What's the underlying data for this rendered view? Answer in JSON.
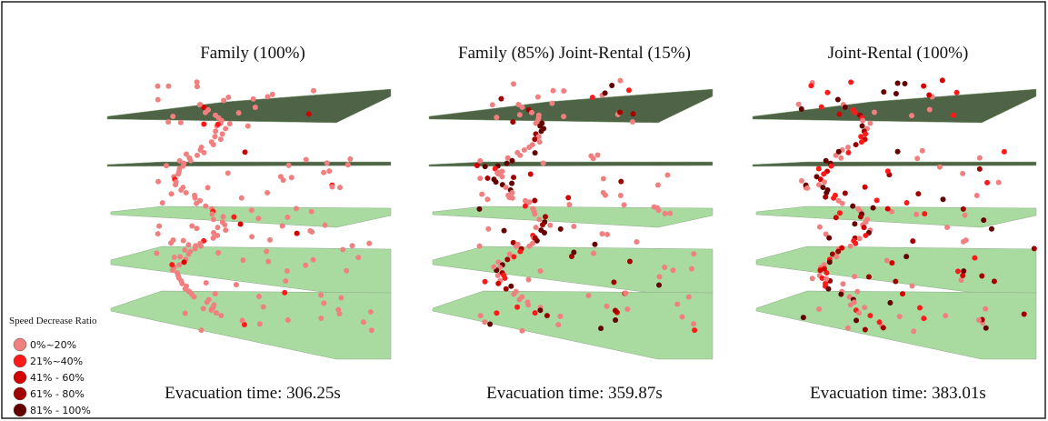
{
  "panels": [
    {
      "title": "Family (100%)",
      "evacuation_time": "Evacuation time: 306.25s"
    },
    {
      "title": "Family (85%) Joint-Rental (15%)",
      "evacuation_time": "Evacuation time: 359.87s"
    },
    {
      "title": "Joint-Rental (100%)",
      "evacuation_time": "Evacuation time: 383.01s"
    }
  ],
  "legend": {
    "title": "Speed Decrease Ratio",
    "items": [
      {
        "label": "0%~20%",
        "color": "#f08080"
      },
      {
        "label": "21%~40%",
        "color": "#ff1a1a"
      },
      {
        "label": "41% - 60%",
        "color": "#d40000"
      },
      {
        "label": "61% - 80%",
        "color": "#a00000"
      },
      {
        "label": "81% - 100%",
        "color": "#640000"
      }
    ]
  }
}
